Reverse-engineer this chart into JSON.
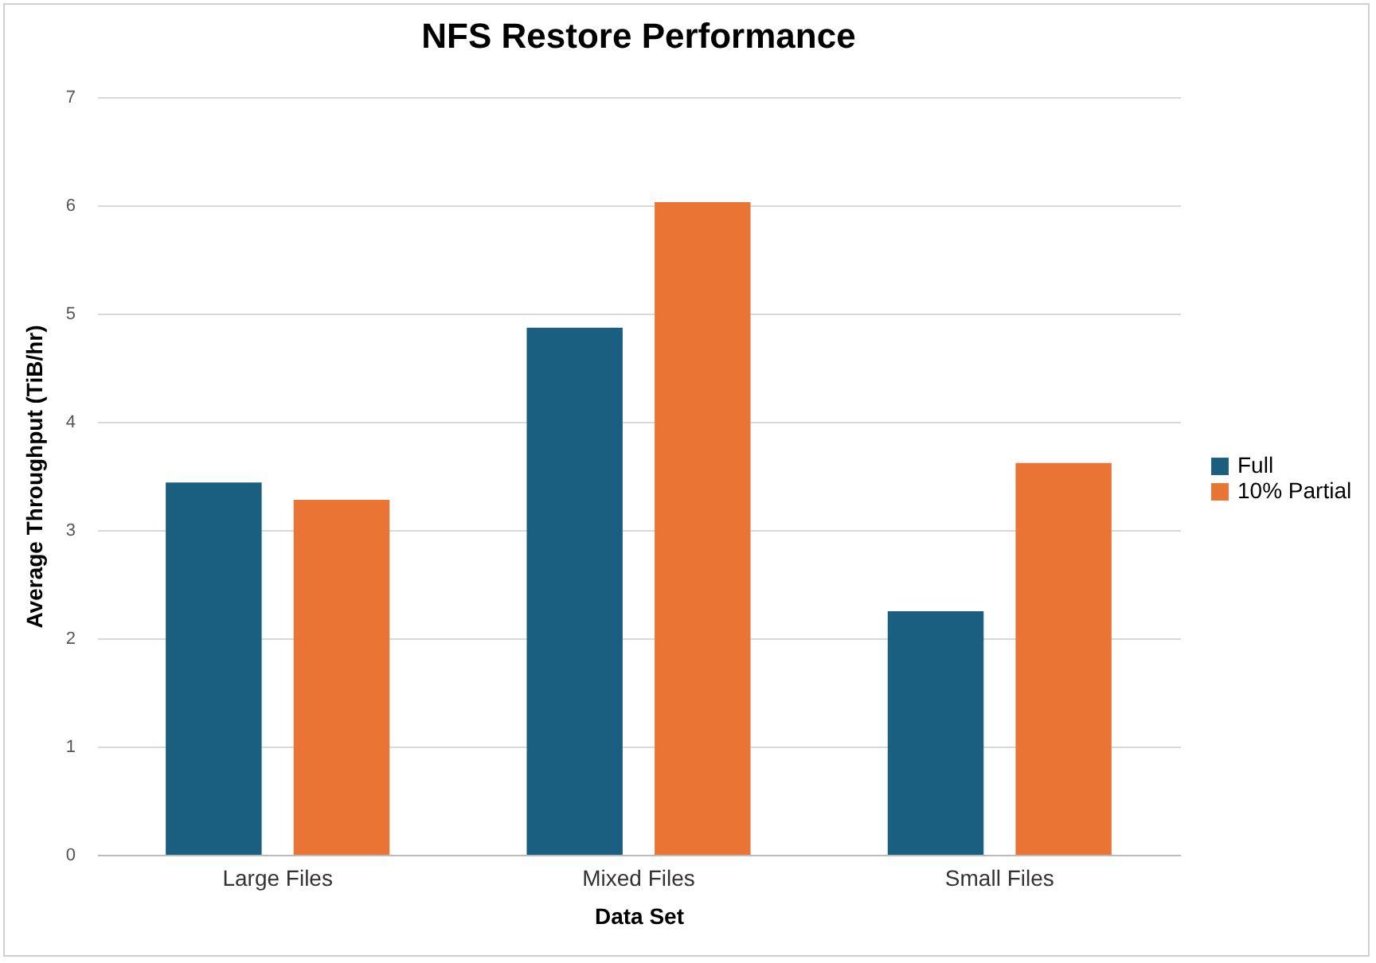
{
  "chart_data": {
    "type": "bar",
    "title": "NFS Restore Performance",
    "xlabel": "Data Set",
    "ylabel": "Average Throughput (TiB/hr)",
    "categories": [
      "Large Files",
      "Mixed Files",
      "Small Files"
    ],
    "series": [
      {
        "name": "Full",
        "color": "#1a5f80",
        "values": [
          3.44,
          4.87,
          2.25
        ]
      },
      {
        "name": "10% Partial",
        "color": "#ea7434",
        "values": [
          3.28,
          6.03,
          3.62
        ]
      }
    ],
    "ylim": [
      0,
      7
    ],
    "yticks": [
      0,
      1,
      2,
      3,
      4,
      5,
      6,
      7
    ],
    "grid": "y",
    "legend": "right"
  }
}
